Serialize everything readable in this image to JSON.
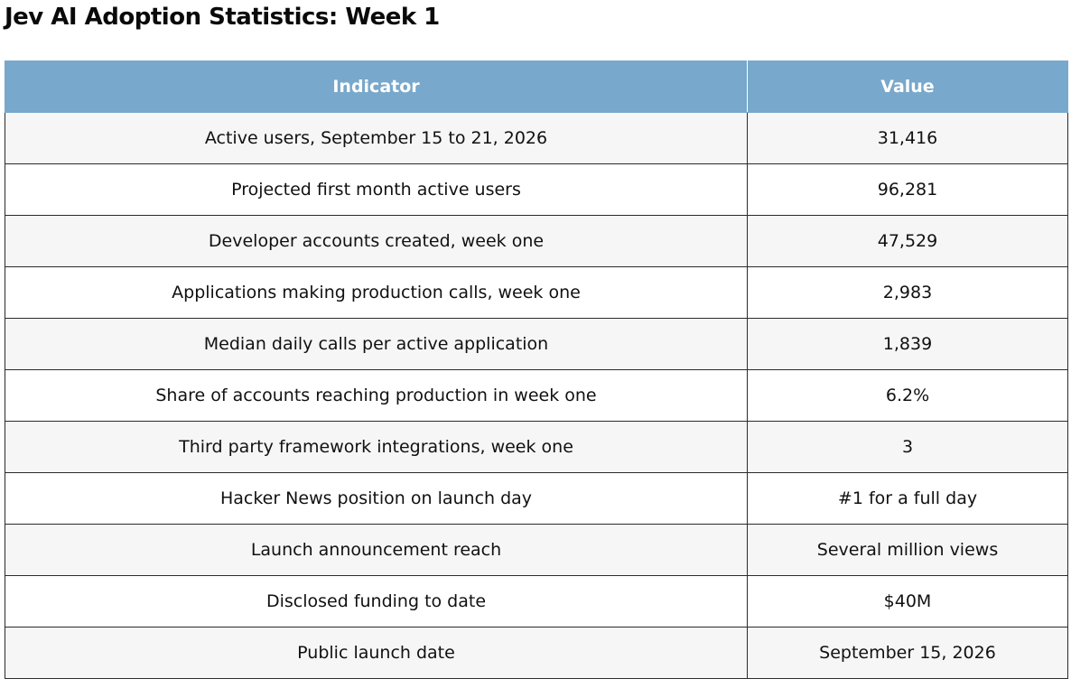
{
  "page": {
    "title": "Jev AI Adoption Statistics: Week 1"
  },
  "table": {
    "headers": {
      "indicator": "Indicator",
      "value": "Value"
    },
    "rows": [
      {
        "indicator": "Active users, September 15 to 21, 2026",
        "value": "31,416"
      },
      {
        "indicator": "Projected first month active users",
        "value": "96,281"
      },
      {
        "indicator": "Developer accounts created, week one",
        "value": "47,529"
      },
      {
        "indicator": "Applications making production calls, week one",
        "value": "2,983"
      },
      {
        "indicator": "Median daily calls per active application",
        "value": "1,839"
      },
      {
        "indicator": "Share of accounts reaching production in week one",
        "value": "6.2%"
      },
      {
        "indicator": "Third party framework integrations, week one",
        "value": "3"
      },
      {
        "indicator": "Hacker News position on launch day",
        "value": "#1 for a full day"
      },
      {
        "indicator": "Launch announcement reach",
        "value": "Several million views"
      },
      {
        "indicator": "Disclosed funding to date",
        "value": "$40M"
      },
      {
        "indicator": "Public launch date",
        "value": "September 15, 2026"
      }
    ]
  },
  "colors": {
    "header_background": "#78a8cb",
    "header_text": "#ffffff",
    "row_stripe": "#f6f6f6",
    "border": "#2b2b2b"
  }
}
